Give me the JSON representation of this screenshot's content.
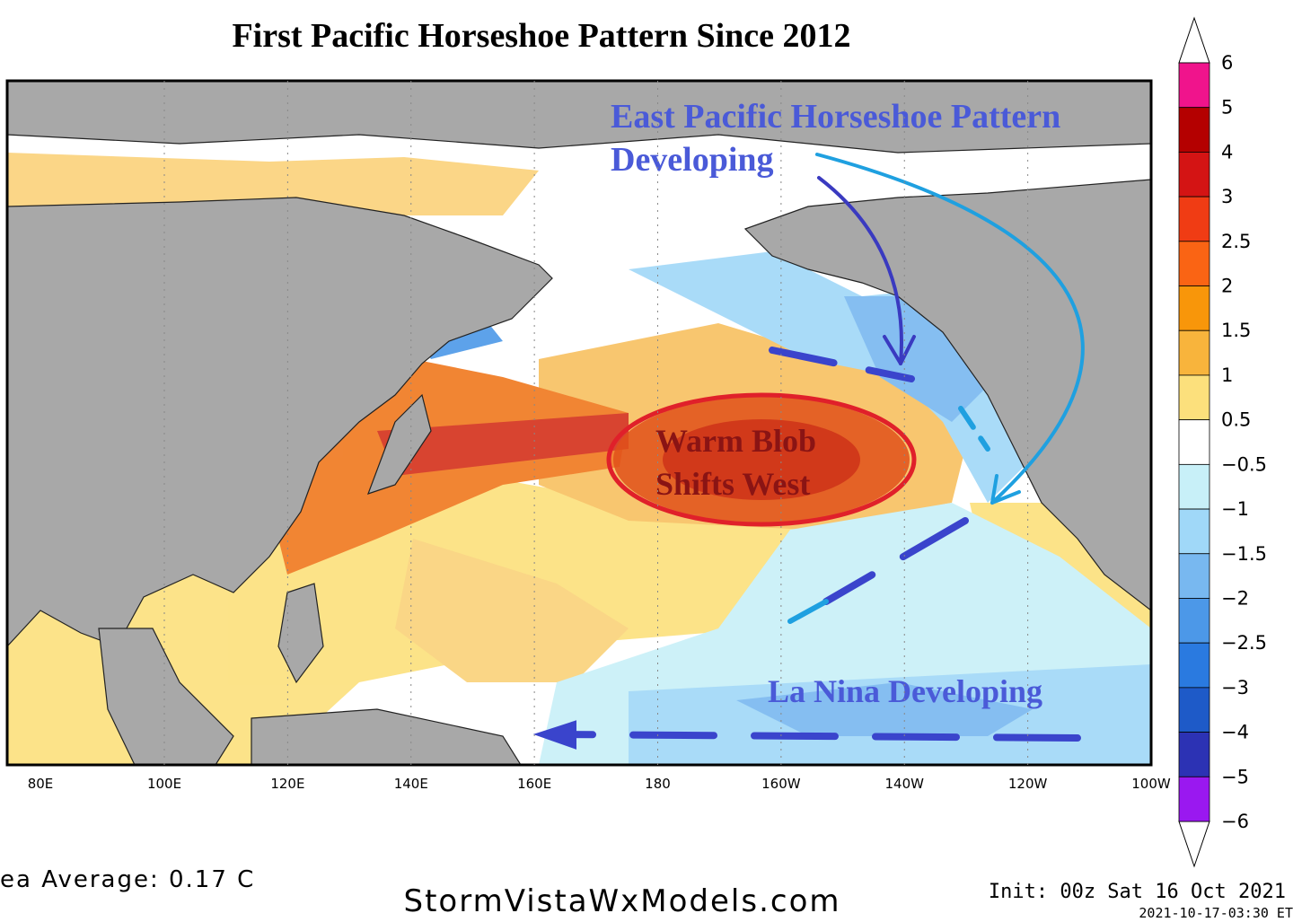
{
  "header": {
    "title": "First Pacific Horseshoe Pattern Since 2012"
  },
  "map": {
    "longitude_labels": [
      "80E",
      "100E",
      "120E",
      "140E",
      "160E",
      "180",
      "160W",
      "140W",
      "120W",
      "100W"
    ],
    "annotations": {
      "horseshoe": [
        "East Pacific Horseshoe Pattern",
        "Developing"
      ],
      "blob": [
        "Warm Blob",
        "Shifts West"
      ],
      "la_nina": "La Nina Developing"
    }
  },
  "colorbar": {
    "labels": [
      "6",
      "5",
      "4",
      "3",
      "2.5",
      "2",
      "1.5",
      "1",
      "0.5",
      "−0.5",
      "−1",
      "−1.5",
      "−2",
      "−2.5",
      "−3",
      "−4",
      "−5",
      "−6"
    ],
    "colors": [
      "#f0148c",
      "#b40000",
      "#d41414",
      "#f03c14",
      "#fa6414",
      "#f8960a",
      "#f8b43c",
      "#fce07c",
      "#ffffff",
      "#c8f0f8",
      "#a0d8f8",
      "#78b8f0",
      "#4c98e8",
      "#2a7ae0",
      "#1e5ac8",
      "#2c32b4",
      "#9a18f0"
    ]
  },
  "footer": {
    "average": "ea Average: 0.17 C",
    "site": "StormVistaWxModels.com",
    "init": "Init: 00z Sat 16 Oct 2021",
    "timestamp": "2021-10-17-03:30 ET"
  }
}
